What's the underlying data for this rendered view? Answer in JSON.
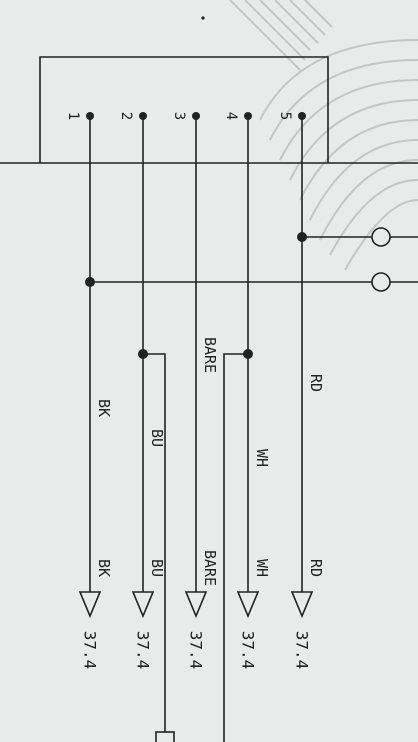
{
  "connector": {
    "pins": [
      "1",
      "2",
      "3",
      "4",
      "5"
    ]
  },
  "wires": [
    {
      "pin": "1",
      "upper_label": "BK",
      "lower_label": "BK",
      "terminal": "37.4"
    },
    {
      "pin": "2",
      "upper_label": "BU",
      "lower_label": "BU",
      "terminal": "37.4"
    },
    {
      "pin": "3",
      "upper_label": "BARE",
      "lower_label": "BARE",
      "terminal": "37.4"
    },
    {
      "pin": "4",
      "upper_label": "WH",
      "lower_label": "WH",
      "terminal": "37.4"
    },
    {
      "pin": "5",
      "upper_label": "RD",
      "lower_label": "RD",
      "terminal": "37.4"
    }
  ],
  "colors": {
    "paper": "#e9eaea",
    "ink": "#222222",
    "background_pattern": "#c4c6c6"
  }
}
